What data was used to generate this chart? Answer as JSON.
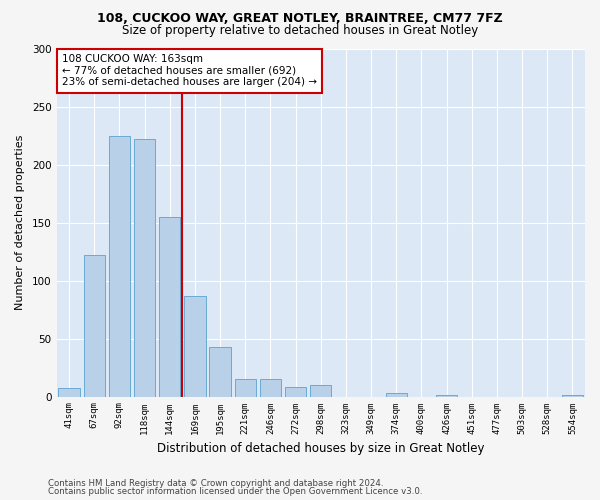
{
  "title1": "108, CUCKOO WAY, GREAT NOTLEY, BRAINTREE, CM77 7FZ",
  "title2": "Size of property relative to detached houses in Great Notley",
  "xlabel": "Distribution of detached houses by size in Great Notley",
  "ylabel": "Number of detached properties",
  "categories": [
    "41sqm",
    "67sqm",
    "92sqm",
    "118sqm",
    "144sqm",
    "169sqm",
    "195sqm",
    "221sqm",
    "246sqm",
    "272sqm",
    "298sqm",
    "323sqm",
    "349sqm",
    "374sqm",
    "400sqm",
    "426sqm",
    "451sqm",
    "477sqm",
    "503sqm",
    "528sqm",
    "554sqm"
  ],
  "values": [
    7,
    122,
    225,
    222,
    155,
    87,
    43,
    15,
    15,
    8,
    10,
    0,
    0,
    3,
    0,
    1,
    0,
    0,
    0,
    0,
    1
  ],
  "bar_color": "#b8d0e8",
  "bar_edge_color": "#6aaad4",
  "vline_color": "#cc0000",
  "annotation_text": "108 CUCKOO WAY: 163sqm\n← 77% of detached houses are smaller (692)\n23% of semi-detached houses are larger (204) →",
  "annotation_box_color": "#ffffff",
  "annotation_box_edge": "#cc0000",
  "ylim": [
    0,
    300
  ],
  "yticks": [
    0,
    50,
    100,
    150,
    200,
    250,
    300
  ],
  "bg_color": "#dce8f5",
  "fig_bg_color": "#f5f5f5",
  "footer1": "Contains HM Land Registry data © Crown copyright and database right 2024.",
  "footer2": "Contains public sector information licensed under the Open Government Licence v3.0."
}
